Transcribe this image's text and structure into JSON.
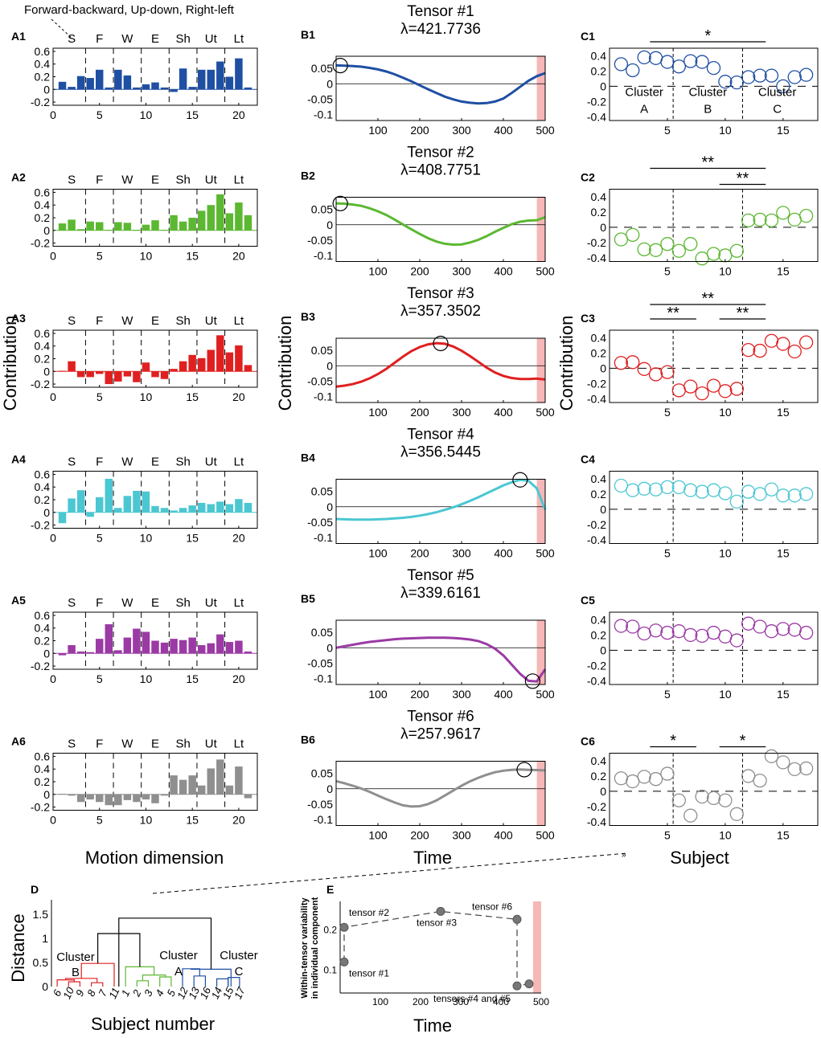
{
  "header_note": "Forward-backward, Up-down, Right-left",
  "motion_groups": [
    "S",
    "F",
    "W",
    "E",
    "Sh",
    "Ut",
    "Lt"
  ],
  "colors": {
    "tensor1": "#1f4fa3",
    "tensor2": "#5cb832",
    "tensor3": "#e02020",
    "tensor4": "#4bc7d2",
    "tensor5": "#9b3aa5",
    "tensor6": "#8f8f8f",
    "highlight": "#f6b7b7"
  },
  "column_labels": {
    "a_x": "Motion dimension",
    "b_x": "Time",
    "c_x": "Subject",
    "a_y": "Contribution",
    "b_y": "Contribution",
    "c_y": "Contribution"
  },
  "panels": [
    {
      "a_label": "A1",
      "b_label": "B1",
      "c_label": "C1",
      "tensor_title": "Tensor #1",
      "lambda": "λ=421.7736",
      "color": "#1f4fa3"
    },
    {
      "a_label": "A2",
      "b_label": "B2",
      "c_label": "C2",
      "tensor_title": "Tensor #2",
      "lambda": "λ=408.7751",
      "color": "#5cb832"
    },
    {
      "a_label": "A3",
      "b_label": "B3",
      "c_label": "C3",
      "tensor_title": "Tensor #3",
      "lambda": "λ=357.3502",
      "color": "#e02020"
    },
    {
      "a_label": "A4",
      "b_label": "B4",
      "c_label": "C4",
      "tensor_title": "Tensor #4",
      "lambda": "λ=356.5445",
      "color": "#4bc7d2"
    },
    {
      "a_label": "A5",
      "b_label": "B5",
      "c_label": "C5",
      "tensor_title": "Tensor #5",
      "lambda": "λ=339.6161",
      "color": "#9b3aa5"
    },
    {
      "a_label": "A6",
      "b_label": "B6",
      "c_label": "C6",
      "tensor_title": "Tensor #6",
      "lambda": "λ=257.9617",
      "color": "#8f8f8f"
    }
  ],
  "cluster_text": {
    "word": "Cluster",
    "A": "A",
    "B": "B",
    "C": "C"
  },
  "dendrogram": {
    "label": "D",
    "ylabel": "Distance",
    "xlabel": "Subject number",
    "leaf_order": [
      "6",
      "10",
      "9",
      "8",
      "7",
      "11",
      "1",
      "2",
      "3",
      "4",
      "5",
      "12",
      "13",
      "16",
      "14",
      "15",
      "17"
    ]
  },
  "panel_e": {
    "label": "E",
    "ylabel_line1": "Within-tensor variability",
    "ylabel_line2": "in individual component",
    "xlabel": "Time"
  },
  "chart_data": [
    {
      "type": "bar",
      "panel": "A",
      "x": [
        1,
        2,
        3,
        4,
        5,
        6,
        7,
        8,
        9,
        10,
        11,
        12,
        13,
        14,
        15,
        16,
        17,
        18,
        19,
        20,
        21
      ],
      "xlim": [
        0,
        22
      ],
      "xticks": [
        0,
        5,
        10,
        15,
        20
      ],
      "ylim": [
        -0.25,
        0.65
      ],
      "yticks": [
        -0.2,
        0,
        0.2,
        0.4,
        0.6
      ],
      "group_separators": [
        3.5,
        6.5,
        9.5,
        12.5,
        15.5,
        18.5
      ],
      "series": [
        {
          "name": "Tensor #1",
          "values": [
            0.12,
            0.04,
            0.21,
            0.18,
            0.31,
            0.03,
            0.31,
            0.22,
            0.03,
            0.08,
            0.11,
            0.03,
            -0.04,
            0.33,
            0.04,
            0.31,
            0.31,
            0.44,
            0.2,
            0.49,
            0.03
          ]
        },
        {
          "name": "Tensor #2",
          "values": [
            0.11,
            0.17,
            0.02,
            0.14,
            0.13,
            0.01,
            0.13,
            0.12,
            0.01,
            0.09,
            0.16,
            0.01,
            0.24,
            0.14,
            0.2,
            0.31,
            0.4,
            0.57,
            0.27,
            0.44,
            0.24
          ]
        },
        {
          "name": "Tensor #3",
          "values": [
            0.01,
            0.16,
            -0.09,
            -0.09,
            -0.04,
            -0.2,
            -0.16,
            -0.08,
            -0.17,
            0.14,
            -0.09,
            -0.12,
            0.04,
            0.16,
            0.26,
            0.21,
            0.34,
            0.57,
            0.3,
            0.41,
            0.1
          ]
        },
        {
          "name": "Tensor #4",
          "values": [
            -0.17,
            0.22,
            0.35,
            -0.07,
            0.24,
            0.53,
            0.07,
            0.26,
            0.34,
            0.33,
            0.1,
            0.07,
            0.03,
            0.07,
            0.11,
            0.15,
            0.13,
            0.17,
            0.13,
            0.21,
            0.15
          ]
        },
        {
          "name": "Tensor #5",
          "values": [
            -0.03,
            0.13,
            0.03,
            0.02,
            0.23,
            0.46,
            0.05,
            0.25,
            0.39,
            0.34,
            0.2,
            0.17,
            0.23,
            0.21,
            0.25,
            0.13,
            0.16,
            0.3,
            0.18,
            0.2,
            0.03
          ]
        },
        {
          "name": "Tensor #6",
          "values": [
            0.01,
            -0.02,
            -0.12,
            -0.08,
            -0.12,
            -0.17,
            -0.17,
            -0.09,
            -0.12,
            -0.08,
            -0.14,
            -0.02,
            0.3,
            0.23,
            0.3,
            0.14,
            0.41,
            0.55,
            0.14,
            0.44,
            -0.06
          ]
        }
      ]
    },
    {
      "type": "line",
      "panel": "B",
      "x": [
        0,
        20,
        40,
        60,
        80,
        100,
        120,
        140,
        160,
        180,
        200,
        220,
        240,
        260,
        280,
        300,
        320,
        340,
        360,
        380,
        400,
        420,
        440,
        460,
        480,
        500
      ],
      "xlim": [
        0,
        500
      ],
      "xticks": [
        100,
        200,
        300,
        400,
        500
      ],
      "ylim": [
        -0.12,
        0.09
      ],
      "yticks": [
        -0.1,
        -0.05,
        0,
        0.05
      ],
      "highlight_range": [
        480,
        500
      ],
      "series": [
        {
          "name": "Tensor #1",
          "values": [
            0.06,
            0.059,
            0.058,
            0.056,
            0.052,
            0.047,
            0.04,
            0.031,
            0.02,
            0.008,
            -0.005,
            -0.018,
            -0.03,
            -0.042,
            -0.051,
            -0.058,
            -0.062,
            -0.064,
            -0.063,
            -0.058,
            -0.048,
            -0.03,
            -0.01,
            0.01,
            0.025,
            0.035
          ],
          "marker_x": 10
        },
        {
          "name": "Tensor #2",
          "values": [
            0.07,
            0.069,
            0.066,
            0.062,
            0.054,
            0.044,
            0.032,
            0.017,
            0.001,
            -0.015,
            -0.03,
            -0.044,
            -0.055,
            -0.062,
            -0.065,
            -0.064,
            -0.058,
            -0.049,
            -0.037,
            -0.023,
            -0.01,
            0.002,
            0.01,
            0.014,
            0.015,
            0.025
          ],
          "marker_x": 10
        },
        {
          "name": "Tensor #3",
          "values": [
            -0.068,
            -0.065,
            -0.06,
            -0.052,
            -0.041,
            -0.027,
            -0.01,
            0.01,
            0.03,
            0.048,
            0.061,
            0.07,
            0.074,
            0.072,
            0.063,
            0.049,
            0.032,
            0.013,
            -0.006,
            -0.022,
            -0.033,
            -0.04,
            -0.043,
            -0.043,
            -0.042,
            -0.045
          ],
          "marker_x": 250
        },
        {
          "name": "Tensor #4",
          "values": [
            -0.04,
            -0.041,
            -0.042,
            -0.042,
            -0.042,
            -0.041,
            -0.04,
            -0.038,
            -0.036,
            -0.033,
            -0.029,
            -0.024,
            -0.018,
            -0.01,
            -0.002,
            0.008,
            0.019,
            0.031,
            0.044,
            0.057,
            0.07,
            0.08,
            0.088,
            0.085,
            0.06,
            -0.01
          ],
          "marker_x": 440
        },
        {
          "name": "Tensor #5",
          "values": [
            0.0,
            0.005,
            0.01,
            0.015,
            0.019,
            0.022,
            0.025,
            0.028,
            0.03,
            0.031,
            0.032,
            0.033,
            0.033,
            0.033,
            0.032,
            0.03,
            0.027,
            0.022,
            0.012,
            -0.003,
            -0.025,
            -0.055,
            -0.085,
            -0.108,
            -0.11,
            -0.07
          ],
          "marker_x": 470
        },
        {
          "name": "Tensor #6",
          "values": [
            0.025,
            0.018,
            0.01,
            0.001,
            -0.01,
            -0.022,
            -0.034,
            -0.045,
            -0.054,
            -0.058,
            -0.057,
            -0.05,
            -0.038,
            -0.022,
            -0.006,
            0.01,
            0.024,
            0.036,
            0.046,
            0.054,
            0.059,
            0.062,
            0.063,
            0.062,
            0.061,
            0.06
          ],
          "marker_x": 450
        }
      ]
    },
    {
      "type": "scatter",
      "panel": "C",
      "x": [
        1,
        2,
        3,
        4,
        5,
        6,
        7,
        8,
        9,
        10,
        11,
        12,
        13,
        14,
        15,
        16,
        17
      ],
      "xlim": [
        0,
        18
      ],
      "xticks": [
        5,
        10,
        15
      ],
      "ylim": [
        -0.45,
        0.5
      ],
      "yticks": [
        -0.4,
        -0.2,
        0,
        0.2,
        0.4
      ],
      "cluster_separators": [
        5.5,
        11.5
      ],
      "series": [
        {
          "name": "Tensor #1",
          "values": [
            0.29,
            0.21,
            0.38,
            0.37,
            0.32,
            0.26,
            0.33,
            0.32,
            0.24,
            0.06,
            0.05,
            0.12,
            0.14,
            0.14,
            0.0,
            0.12,
            0.15
          ],
          "significance": [
            {
              "from": 3.5,
              "to": 13.5,
              "mark": "*"
            }
          ]
        },
        {
          "name": "Tensor #2",
          "values": [
            -0.16,
            -0.1,
            -0.29,
            -0.3,
            -0.22,
            -0.31,
            -0.22,
            -0.41,
            -0.35,
            -0.37,
            -0.31,
            0.09,
            0.1,
            0.09,
            0.19,
            0.1,
            0.15
          ],
          "significance": [
            {
              "from": 3.5,
              "to": 13.5,
              "mark": "**"
            },
            {
              "from": 9.5,
              "to": 13.5,
              "mark": "**"
            }
          ]
        },
        {
          "name": "Tensor #3",
          "values": [
            0.07,
            0.08,
            -0.01,
            -0.08,
            -0.05,
            -0.29,
            -0.24,
            -0.33,
            -0.23,
            -0.3,
            -0.27,
            0.24,
            0.23,
            0.36,
            0.32,
            0.22,
            0.34
          ],
          "significance": [
            {
              "from": 3.5,
              "to": 13.5,
              "mark": "**"
            },
            {
              "from": 3.5,
              "to": 7.5,
              "mark": "**"
            },
            {
              "from": 9.5,
              "to": 13.5,
              "mark": "**"
            }
          ]
        },
        {
          "name": "Tensor #4",
          "values": [
            0.31,
            0.25,
            0.27,
            0.26,
            0.29,
            0.29,
            0.25,
            0.23,
            0.25,
            0.21,
            0.1,
            0.23,
            0.2,
            0.26,
            0.18,
            0.18,
            0.2
          ],
          "significance": []
        },
        {
          "name": "Tensor #5",
          "values": [
            0.32,
            0.31,
            0.22,
            0.26,
            0.23,
            0.25,
            0.2,
            0.19,
            0.23,
            0.18,
            0.13,
            0.35,
            0.31,
            0.25,
            0.28,
            0.27,
            0.23
          ],
          "significance": []
        },
        {
          "name": "Tensor #6",
          "values": [
            0.17,
            0.13,
            0.19,
            0.16,
            0.23,
            -0.12,
            -0.32,
            -0.07,
            -0.09,
            -0.12,
            -0.3,
            0.2,
            0.14,
            0.46,
            0.38,
            0.29,
            0.3
          ],
          "significance": [
            {
              "from": 3.5,
              "to": 7.5,
              "mark": "*"
            },
            {
              "from": 9.5,
              "to": 13.5,
              "mark": "*"
            }
          ]
        }
      ]
    },
    {
      "type": "dendrogram",
      "panel": "D",
      "ylim": [
        0,
        1.8
      ],
      "yticks": [
        0,
        0.5,
        1,
        1.5
      ],
      "leaves": [
        "6",
        "10",
        "9",
        "8",
        "7",
        "11",
        "1",
        "2",
        "3",
        "4",
        "5",
        "12",
        "13",
        "16",
        "14",
        "15",
        "17"
      ],
      "merges": [
        {
          "pos": [
            2,
            3
          ],
          "h": 0.1,
          "color": "#e02020"
        },
        {
          "pos": [
            1,
            2.5
          ],
          "h": 0.14,
          "color": "#e02020"
        },
        {
          "pos": [
            4,
            5
          ],
          "h": 0.08,
          "color": "#e02020"
        },
        {
          "pos": [
            1.75,
            4.5
          ],
          "h": 0.17,
          "color": "#e02020"
        },
        {
          "pos": [
            3.125,
            6
          ],
          "h": 0.48,
          "color": "#e02020"
        },
        {
          "pos": [
            8,
            9
          ],
          "h": 0.12,
          "color": "#5cb832"
        },
        {
          "pos": [
            10,
            11
          ],
          "h": 0.2,
          "color": "#5cb832"
        },
        {
          "pos": [
            8.5,
            10.5
          ],
          "h": 0.24,
          "color": "#5cb832"
        },
        {
          "pos": [
            7,
            9.5
          ],
          "h": 0.41,
          "color": "#5cb832"
        },
        {
          "pos": [
            4.5625,
            8.25
          ],
          "h": 1.1,
          "color": "#000000"
        },
        {
          "pos": [
            13,
            14
          ],
          "h": 0.22,
          "color": "#1f4fa3"
        },
        {
          "pos": [
            15,
            16
          ],
          "h": 0.16,
          "color": "#1f4fa3"
        },
        {
          "pos": [
            16,
            17
          ],
          "h": 0.19,
          "color": "#1f4fa3"
        },
        {
          "pos": [
            12,
            13.5
          ],
          "h": 0.37,
          "color": "#1f4fa3"
        },
        {
          "pos": [
            12.75,
            16.25
          ],
          "h": 0.36,
          "color": "#1f4fa3"
        },
        {
          "pos": [
            6.41,
            14.5
          ],
          "h": 1.42,
          "color": "#000000"
        }
      ]
    },
    {
      "type": "line",
      "panel": "E",
      "xlim": [
        0,
        500
      ],
      "xticks": [
        100,
        200,
        300,
        400,
        500
      ],
      "ylim": [
        0.04,
        0.27
      ],
      "yticks": [
        0.1,
        0.2
      ],
      "highlight_range": [
        480,
        500
      ],
      "points": [
        {
          "x": 10,
          "y": 0.118,
          "label": "tensor #1"
        },
        {
          "x": 10,
          "y": 0.205,
          "label": "tensor #2"
        },
        {
          "x": 250,
          "y": 0.245,
          "label": "tensor #3"
        },
        {
          "x": 440,
          "y": 0.225,
          "label": "tensor #6"
        },
        {
          "x": 440,
          "y": 0.058,
          "label": "tensors #4 and #5"
        },
        {
          "x": 470,
          "y": 0.063,
          "label": ""
        }
      ]
    }
  ]
}
